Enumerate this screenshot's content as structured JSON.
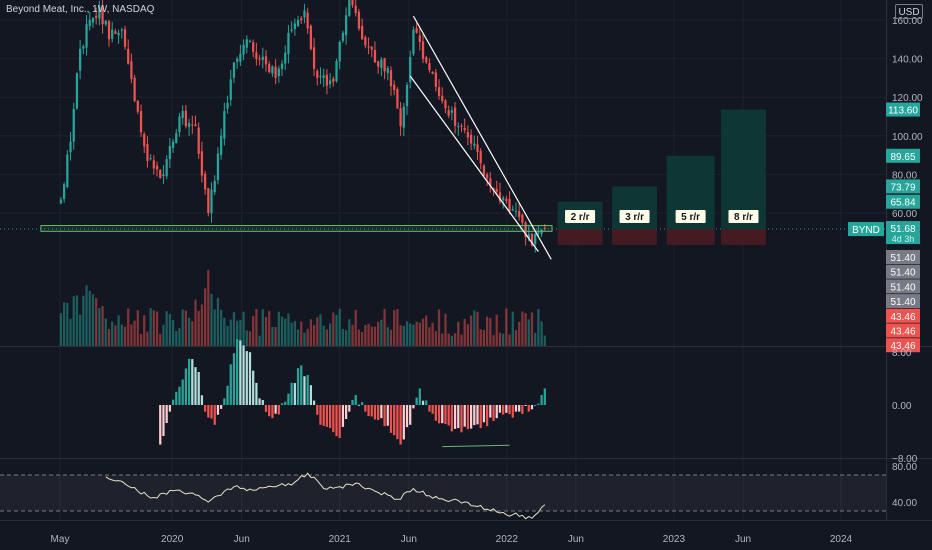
{
  "header": {
    "title": "Beyond Meat, Inc., 1W, NASDAQ",
    "currency": "USD"
  },
  "colors": {
    "background": "#131722",
    "up": "#26a69a",
    "down": "#ef5350",
    "grid": "#1e222d",
    "text": "#b2b5be",
    "channel": "#ffffff",
    "support_zone": "#66bb6a",
    "profit_zone": "#0e3a36",
    "loss_zone": "#4a1c23",
    "rsi_line": "#e8e2c9"
  },
  "chart_data": [
    {
      "type": "candlestick",
      "symbol": "BYND",
      "interval": "1W",
      "x_ticks": [
        "May",
        "2020",
        "Jun",
        "2021",
        "Jun",
        "2022",
        "Jun",
        "2023",
        "Jun",
        "2024"
      ],
      "y_ticks": [
        160,
        140,
        120,
        100,
        80,
        60
      ],
      "y_tick_labels": [
        "160.00",
        "140.00",
        "120.00",
        "100.00",
        "80.00",
        "60.00"
      ],
      "ylim": [
        40,
        170
      ],
      "waypoints": [
        {
          "date": "2019-05-03",
          "close": 67
        },
        {
          "date": "2019-05-24",
          "close": 97
        },
        {
          "date": "2019-06-14",
          "close": 145
        },
        {
          "date": "2019-07-05",
          "close": 160
        },
        {
          "date": "2019-07-26",
          "close": 167
        },
        {
          "date": "2019-08-16",
          "close": 150
        },
        {
          "date": "2019-09-13",
          "close": 155
        },
        {
          "date": "2019-10-11",
          "close": 118
        },
        {
          "date": "2019-11-08",
          "close": 87
        },
        {
          "date": "2019-12-13",
          "close": 80
        },
        {
          "date": "2020-01-17",
          "close": 110
        },
        {
          "date": "2020-02-21",
          "close": 105
        },
        {
          "date": "2020-03-20",
          "close": 60
        },
        {
          "date": "2020-04-17",
          "close": 100
        },
        {
          "date": "2020-05-15",
          "close": 138
        },
        {
          "date": "2020-06-12",
          "close": 150
        },
        {
          "date": "2020-07-10",
          "close": 140
        },
        {
          "date": "2020-08-14",
          "close": 130
        },
        {
          "date": "2020-09-18",
          "close": 155
        },
        {
          "date": "2020-10-16",
          "close": 165
        },
        {
          "date": "2020-11-13",
          "close": 130
        },
        {
          "date": "2020-12-18",
          "close": 128
        },
        {
          "date": "2021-01-22",
          "close": 172
        },
        {
          "date": "2021-02-19",
          "close": 150
        },
        {
          "date": "2021-03-19",
          "close": 138
        },
        {
          "date": "2021-04-16",
          "close": 135
        },
        {
          "date": "2021-05-14",
          "close": 105
        },
        {
          "date": "2021-06-11",
          "close": 155
        },
        {
          "date": "2021-07-09",
          "close": 138
        },
        {
          "date": "2021-08-13",
          "close": 118
        },
        {
          "date": "2021-09-17",
          "close": 105
        },
        {
          "date": "2021-10-22",
          "close": 96
        },
        {
          "date": "2021-11-19",
          "close": 78
        },
        {
          "date": "2021-12-17",
          "close": 66
        },
        {
          "date": "2022-01-14",
          "close": 62
        },
        {
          "date": "2022-02-04",
          "close": 55
        },
        {
          "date": "2022-02-25",
          "close": 43
        },
        {
          "date": "2022-03-11",
          "close": 50
        },
        {
          "date": "2022-03-25",
          "close": 51.68
        }
      ],
      "channel_lines": [
        {
          "from": {
            "date": "2021-06-11",
            "price": 162
          },
          "to": {
            "date": "2022-04-08",
            "price": 36
          }
        },
        {
          "from": {
            "date": "2021-06-04",
            "price": 131
          },
          "to": {
            "date": "2022-03-11",
            "price": 40
          }
        }
      ],
      "support_zone": {
        "from_date": "2019-05-03",
        "to_date": "2022-04-01",
        "top": 53.5,
        "bottom": 50.5
      },
      "risk_reward_boxes": [
        {
          "label": "2 r/r",
          "from_date": "2022-04-22",
          "to_date": "2022-07-29",
          "target": 65.84,
          "entry": 51.68,
          "stop": 43.46
        },
        {
          "label": "3 r/r",
          "from_date": "2022-08-19",
          "to_date": "2022-11-25",
          "target": 73.79,
          "entry": 51.68,
          "stop": 43.46
        },
        {
          "label": "5 r/r",
          "from_date": "2022-12-16",
          "to_date": "2023-03-31",
          "target": 89.65,
          "entry": 51.68,
          "stop": 43.46
        },
        {
          "label": "8 r/r",
          "from_date": "2023-04-14",
          "to_date": "2023-07-21",
          "target": 113.6,
          "entry": 51.68,
          "stop": 43.46
        }
      ],
      "price_labels": [
        {
          "text": "113.60",
          "value": 113.6,
          "color": "#26a69a"
        },
        {
          "text": "89.65",
          "value": 89.65,
          "color": "#26a69a"
        },
        {
          "text": "73.79",
          "value": 73.79,
          "color": "#26a69a"
        },
        {
          "text": "65.84",
          "value": 65.84,
          "color": "#26a69a"
        }
      ],
      "current_price": {
        "symbol": "BYND",
        "value": 51.68,
        "text": "51.68",
        "countdown": "4d 3h"
      },
      "stacked_labels": [
        {
          "text": "51.40",
          "color": "#787b86"
        },
        {
          "text": "51.40",
          "color": "#787b86"
        },
        {
          "text": "51.40",
          "color": "#787b86"
        },
        {
          "text": "51.40",
          "color": "#787b86"
        },
        {
          "text": "43.46",
          "color": "#ef5350"
        },
        {
          "text": "43.46",
          "color": "#ef5350"
        },
        {
          "text": "43.46",
          "color": "#ef5350"
        }
      ]
    },
    {
      "type": "bar",
      "name": "volume",
      "note_on_values": "relative heights",
      "peak_date": "2020-03-20"
    },
    {
      "type": "bar",
      "name": "momentum histogram",
      "ylim": [
        -8,
        8
      ],
      "y_ticks": [
        8,
        0,
        -8
      ],
      "y_tick_labels": [
        "8.00",
        "0.00",
        "−8.00"
      ],
      "start_date": "2019-12-06",
      "end_date": "2022-03-25",
      "divergence_line": {
        "from": {
          "date": "2021-08-13",
          "value": -6.3
        },
        "to": {
          "date": "2022-01-07",
          "value": -6.1
        }
      },
      "waypoints": [
        {
          "date": "2019-12-06",
          "value": -6
        },
        {
          "date": "2019-12-27",
          "value": -1
        },
        {
          "date": "2020-01-10",
          "value": 2
        },
        {
          "date": "2020-02-07",
          "value": 7
        },
        {
          "date": "2020-02-28",
          "value": 5
        },
        {
          "date": "2020-03-13",
          "value": -1
        },
        {
          "date": "2020-04-03",
          "value": -3
        },
        {
          "date": "2020-04-24",
          "value": 1
        },
        {
          "date": "2020-05-22",
          "value": 10
        },
        {
          "date": "2020-06-19",
          "value": 8
        },
        {
          "date": "2020-07-10",
          "value": 1
        },
        {
          "date": "2020-08-07",
          "value": -2
        },
        {
          "date": "2020-09-04",
          "value": 0.5
        },
        {
          "date": "2020-10-09",
          "value": 6
        },
        {
          "date": "2020-10-30",
          "value": 3
        },
        {
          "date": "2020-11-20",
          "value": -3
        },
        {
          "date": "2021-01-01",
          "value": -5
        },
        {
          "date": "2021-01-22",
          "value": -1
        },
        {
          "date": "2021-02-05",
          "value": 1.5
        },
        {
          "date": "2021-02-26",
          "value": -1
        },
        {
          "date": "2021-04-02",
          "value": -2
        },
        {
          "date": "2021-05-14",
          "value": -6
        },
        {
          "date": "2021-06-04",
          "value": -3
        },
        {
          "date": "2021-06-25",
          "value": 2.5
        },
        {
          "date": "2021-07-16",
          "value": -1
        },
        {
          "date": "2021-09-03",
          "value": -4
        },
        {
          "date": "2021-11-05",
          "value": -3.5
        },
        {
          "date": "2021-12-10",
          "value": -2
        },
        {
          "date": "2022-01-28",
          "value": -1
        },
        {
          "date": "2022-03-04",
          "value": 0
        },
        {
          "date": "2022-03-25",
          "value": 2.5
        }
      ]
    },
    {
      "type": "line",
      "name": "RSI",
      "ylim": [
        15,
        85
      ],
      "y_ticks": [
        80,
        40
      ],
      "y_tick_labels": [
        "80.00",
        "40.00"
      ],
      "upper_band": 70,
      "lower_band": 30,
      "start_date": "2019-08-09",
      "end_date": "2022-03-25",
      "waypoints": [
        {
          "date": "2019-08-09",
          "value": 68
        },
        {
          "date": "2019-09-13",
          "value": 63
        },
        {
          "date": "2019-10-18",
          "value": 52
        },
        {
          "date": "2019-11-22",
          "value": 45
        },
        {
          "date": "2020-01-10",
          "value": 53
        },
        {
          "date": "2020-02-14",
          "value": 50
        },
        {
          "date": "2020-03-20",
          "value": 40
        },
        {
          "date": "2020-04-24",
          "value": 52
        },
        {
          "date": "2020-05-22",
          "value": 58
        },
        {
          "date": "2020-06-26",
          "value": 53
        },
        {
          "date": "2020-08-07",
          "value": 57
        },
        {
          "date": "2020-09-25",
          "value": 62
        },
        {
          "date": "2020-10-23",
          "value": 72
        },
        {
          "date": "2020-11-27",
          "value": 55
        },
        {
          "date": "2021-01-01",
          "value": 57
        },
        {
          "date": "2021-02-05",
          "value": 61
        },
        {
          "date": "2021-03-19",
          "value": 52
        },
        {
          "date": "2021-05-07",
          "value": 43
        },
        {
          "date": "2021-06-11",
          "value": 55
        },
        {
          "date": "2021-07-16",
          "value": 47
        },
        {
          "date": "2021-09-03",
          "value": 42
        },
        {
          "date": "2021-10-29",
          "value": 35
        },
        {
          "date": "2021-12-10",
          "value": 29
        },
        {
          "date": "2022-01-14",
          "value": 26
        },
        {
          "date": "2022-02-25",
          "value": 22
        },
        {
          "date": "2022-03-25",
          "value": 37
        }
      ]
    }
  ]
}
